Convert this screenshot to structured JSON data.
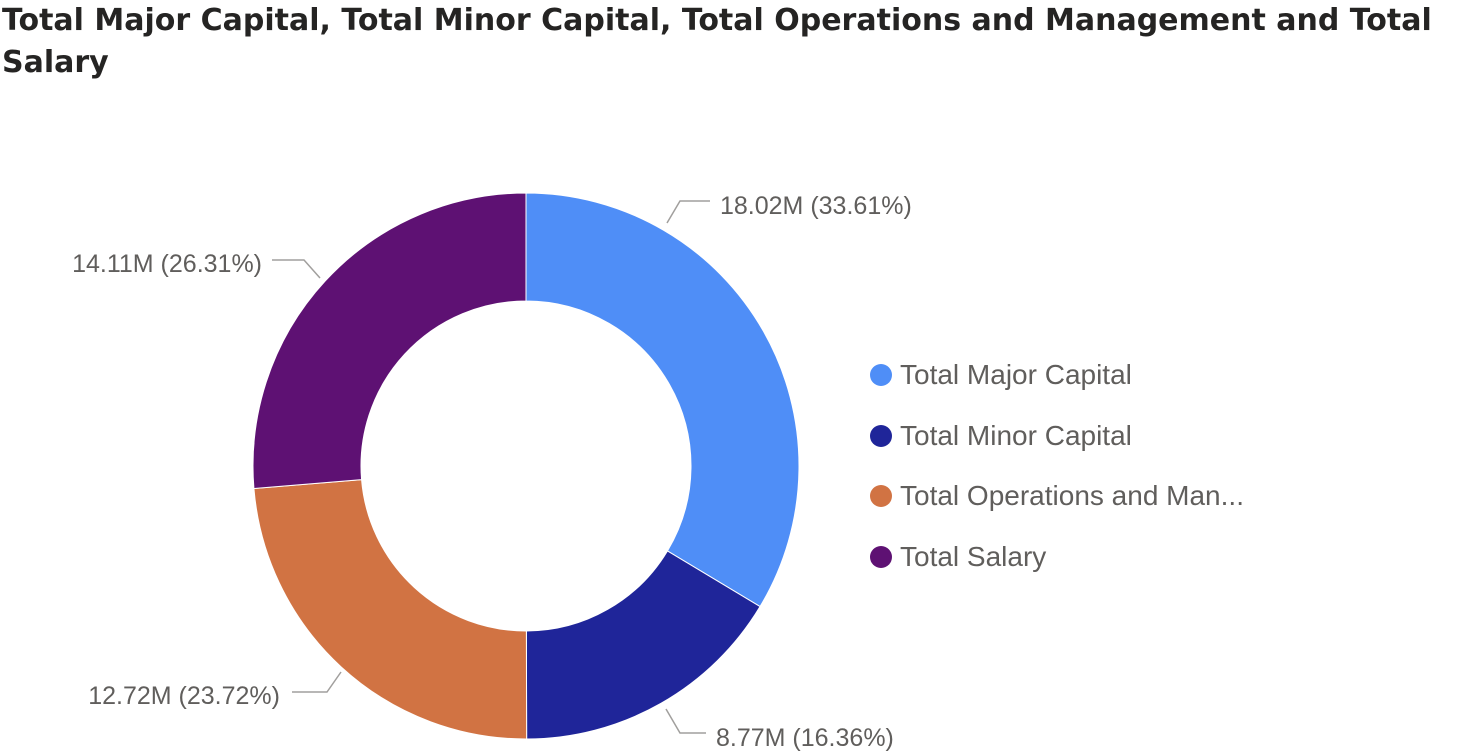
{
  "chart_data": {
    "type": "pie",
    "variant": "donut",
    "title": "Total Major Capital, Total Minor Capital, Total Operations and Management and Total Salary",
    "legend_position": "right",
    "slices": [
      {
        "name": "Total Major Capital",
        "legend_label": "Total Major Capital",
        "value": 18.02,
        "label": "18.02M (33.61%)",
        "color": "#4f8ef7"
      },
      {
        "name": "Total Minor Capital",
        "legend_label": "Total Minor Capital",
        "value": 8.77,
        "label": "8.77M (16.36%)",
        "color": "#1f2599"
      },
      {
        "name": "Total Operations and Management",
        "legend_label": "Total Operations and Man...",
        "value": 12.72,
        "label": "12.72M (23.72%)",
        "color": "#d17343"
      },
      {
        "name": "Total Salary",
        "legend_label": "Total Salary",
        "value": 14.11,
        "label": "14.11M (26.31%)",
        "color": "#5e1173"
      }
    ]
  }
}
